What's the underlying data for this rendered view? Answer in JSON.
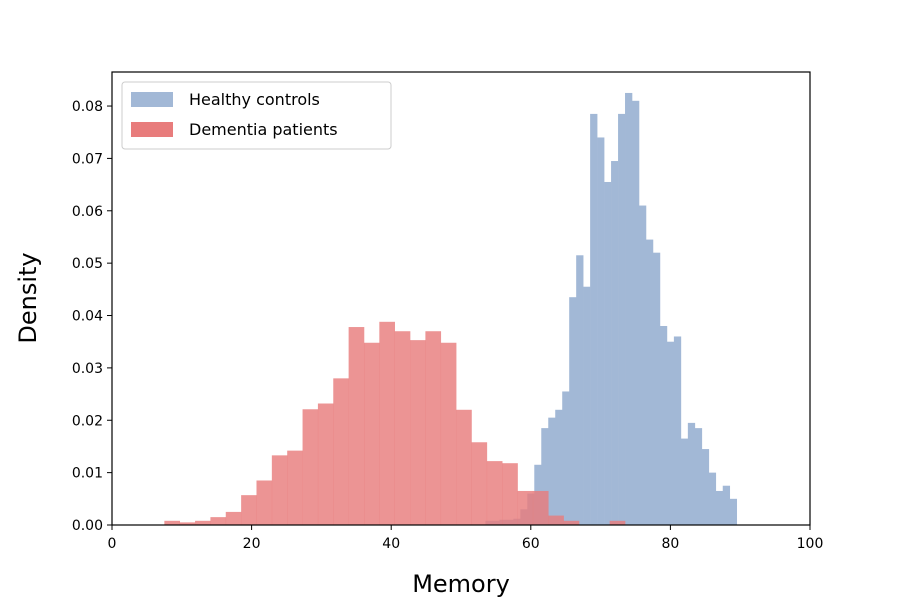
{
  "chart_data": {
    "type": "histogram",
    "xlabel": "Memory",
    "ylabel": "Density",
    "xlim": [
      0,
      100
    ],
    "ylim": [
      0,
      0.0865
    ],
    "xticks": [
      0,
      20,
      40,
      60,
      80,
      100
    ],
    "yticks": [
      0.0,
      0.01,
      0.02,
      0.03,
      0.04,
      0.05,
      0.06,
      0.07,
      0.08
    ],
    "ytick_labels": [
      "0.00",
      "0.01",
      "0.02",
      "0.03",
      "0.04",
      "0.05",
      "0.06",
      "0.07",
      "0.08"
    ],
    "grid": false,
    "legend_position": "top-left",
    "series": [
      {
        "name": "Healthy controls",
        "color": "#a2b8d6",
        "bins": [
          [
            53.5,
            54.5,
            0.0008
          ],
          [
            54.5,
            55.5,
            0.0008
          ],
          [
            55.5,
            56.5,
            0.001
          ],
          [
            56.5,
            57.5,
            0.001
          ],
          [
            57.5,
            58.5,
            0.0012
          ],
          [
            58.5,
            59.5,
            0.003
          ],
          [
            59.5,
            60.5,
            0.006
          ],
          [
            60.5,
            61.5,
            0.0115
          ],
          [
            61.5,
            62.5,
            0.0185
          ],
          [
            62.5,
            63.5,
            0.0205
          ],
          [
            63.5,
            64.5,
            0.022
          ],
          [
            64.5,
            65.5,
            0.0255
          ],
          [
            65.5,
            66.5,
            0.0435
          ],
          [
            66.5,
            67.5,
            0.0515
          ],
          [
            67.5,
            68.5,
            0.0455
          ],
          [
            68.5,
            69.5,
            0.0785
          ],
          [
            69.5,
            70.5,
            0.074
          ],
          [
            70.5,
            71.5,
            0.0655
          ],
          [
            71.5,
            72.5,
            0.0695
          ],
          [
            72.5,
            73.5,
            0.0785
          ],
          [
            73.5,
            74.5,
            0.0825
          ],
          [
            74.5,
            75.5,
            0.081
          ],
          [
            75.5,
            76.5,
            0.061
          ],
          [
            76.5,
            77.5,
            0.0545
          ],
          [
            77.5,
            78.5,
            0.052
          ],
          [
            78.5,
            79.5,
            0.038
          ],
          [
            79.5,
            80.5,
            0.035
          ],
          [
            80.5,
            81.5,
            0.036
          ],
          [
            81.5,
            82.5,
            0.0165
          ],
          [
            82.5,
            83.5,
            0.0195
          ],
          [
            83.5,
            84.5,
            0.0185
          ],
          [
            84.5,
            85.5,
            0.0145
          ],
          [
            85.5,
            86.5,
            0.01
          ],
          [
            86.5,
            87.5,
            0.0065
          ],
          [
            87.5,
            88.5,
            0.0075
          ],
          [
            88.5,
            89.5,
            0.005
          ]
        ]
      },
      {
        "name": "Dementia patients",
        "color": "#e87c7c",
        "bins": [
          [
            7.5,
            9.7,
            0.0008
          ],
          [
            9.7,
            11.9,
            0.0005
          ],
          [
            11.9,
            14.1,
            0.0008
          ],
          [
            14.1,
            16.3,
            0.0015
          ],
          [
            16.3,
            18.5,
            0.0025
          ],
          [
            18.5,
            20.7,
            0.0057
          ],
          [
            20.7,
            22.9,
            0.0085
          ],
          [
            22.9,
            25.1,
            0.0133
          ],
          [
            25.1,
            27.3,
            0.0142
          ],
          [
            27.3,
            29.5,
            0.0221
          ],
          [
            29.5,
            31.7,
            0.0232
          ],
          [
            31.7,
            33.9,
            0.028
          ],
          [
            33.9,
            36.1,
            0.0378
          ],
          [
            36.1,
            38.3,
            0.0348
          ],
          [
            38.3,
            40.5,
            0.0388
          ],
          [
            40.5,
            42.7,
            0.037
          ],
          [
            42.7,
            44.9,
            0.0353
          ],
          [
            44.9,
            47.1,
            0.037
          ],
          [
            47.1,
            49.3,
            0.0348
          ],
          [
            49.3,
            51.5,
            0.022
          ],
          [
            51.5,
            53.7,
            0.0158
          ],
          [
            53.7,
            55.9,
            0.0122
          ],
          [
            55.9,
            58.1,
            0.0118
          ],
          [
            58.1,
            60.3,
            0.0065
          ],
          [
            60.3,
            62.5,
            0.0065
          ],
          [
            62.5,
            64.7,
            0.0018
          ],
          [
            64.7,
            66.9,
            0.0008
          ],
          [
            66.9,
            69.1,
            0
          ],
          [
            69.1,
            71.3,
            0
          ],
          [
            71.3,
            73.5,
            0.0008
          ]
        ]
      }
    ]
  }
}
